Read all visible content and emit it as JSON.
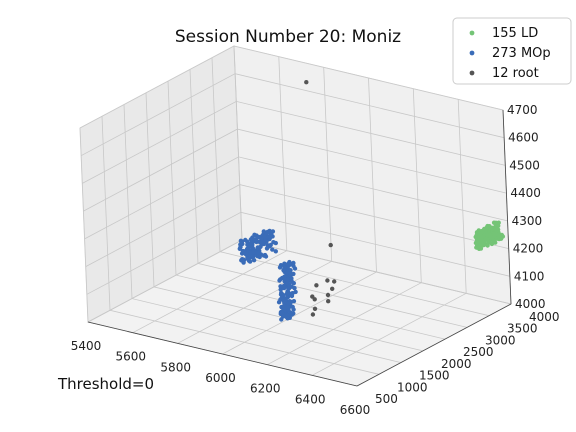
{
  "chart_data": {
    "type": "scatter",
    "title": "Session Number 20: Moniz",
    "annotation": "Threshold=0",
    "xlabel": "",
    "ylabel": "",
    "zlabel": "",
    "xlim": [
      5400,
      6600
    ],
    "ylim": [
      500,
      4000
    ],
    "zlim": [
      4000,
      4700
    ],
    "x_ticks": [
      "5400",
      "5600",
      "5800",
      "6000",
      "6200",
      "6400",
      "6600"
    ],
    "y_ticks": [
      "500",
      "1000",
      "1500",
      "2000",
      "2500",
      "3000",
      "3500",
      "4000"
    ],
    "z_ticks": [
      "4000",
      "4100",
      "4200",
      "4300",
      "4400",
      "4500",
      "4600",
      "4700"
    ],
    "legend_position": "top-right",
    "grid": true,
    "series": [
      {
        "name": "155 LD",
        "color": "#74c476",
        "points": [
          [
            6550,
            3550,
            4240
          ],
          [
            6550,
            3900,
            4240
          ],
          [
            6560,
            3600,
            4260
          ],
          [
            6560,
            3850,
            4280
          ],
          [
            6570,
            3700,
            4250
          ]
        ],
        "clusters": [
          {
            "x": [
              6540,
              6580
            ],
            "y": [
              3500,
              4000
            ],
            "z": [
              4230,
              4290
            ],
            "count": 150
          }
        ]
      },
      {
        "name": "273 MOp",
        "color": "#3a6cb8",
        "points": [
          [
            5550,
            3400,
            4050
          ],
          [
            5550,
            3800,
            4050
          ]
        ],
        "clusters": [
          {
            "x": [
              5520,
              5580
            ],
            "y": [
              3300,
              3900
            ],
            "z": [
              4000,
              4080
            ],
            "count": 120
          },
          {
            "x": [
              5980,
              6020
            ],
            "y": [
              1900,
              2100
            ],
            "z": [
              4000,
              4200
            ],
            "count": 151
          }
        ]
      },
      {
        "name": "12 root",
        "color": "#555555",
        "points": [
          [
            5800,
            3600,
            4680
          ],
          [
            5900,
            3500,
            4120
          ],
          [
            5980,
            3000,
            4050
          ],
          [
            5990,
            3100,
            4040
          ],
          [
            6000,
            2900,
            4010
          ],
          [
            6010,
            2950,
            4030
          ],
          [
            6020,
            2800,
            4000
          ],
          [
            5990,
            2700,
            4060
          ],
          [
            6000,
            2600,
            4020
          ],
          [
            6010,
            2500,
            4040
          ],
          [
            6040,
            2400,
            4010
          ],
          [
            6050,
            2300,
            4000
          ]
        ]
      }
    ]
  }
}
